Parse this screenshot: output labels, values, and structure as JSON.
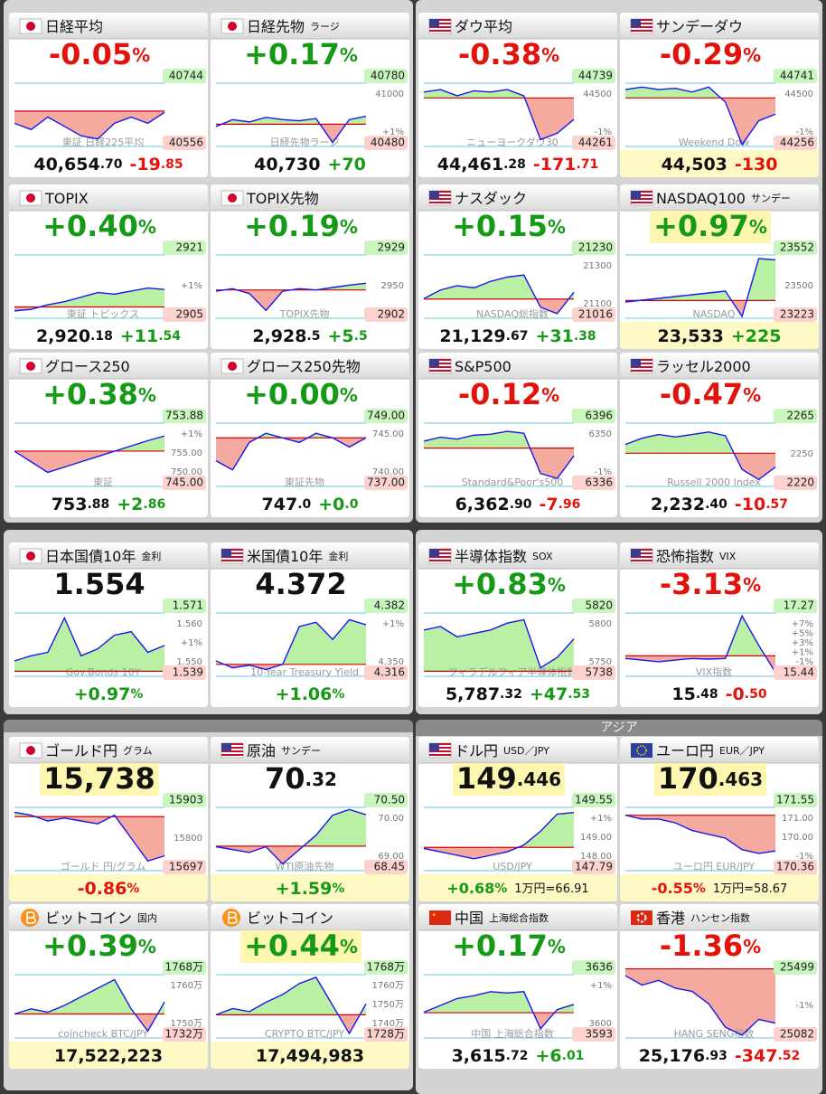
{
  "section_label": "アジア",
  "tiles": [
    {
      "flag": "jp",
      "name": "日経平均",
      "top": "-0.05%",
      "tags": [
        "40744",
        "40556"
      ],
      "gray": [],
      "watermark": "東証 日経225平均",
      "bottom": [
        "40,654.70",
        "-19.85"
      ],
      "ylim": [
        40540,
        40760
      ],
      "prev": 40659,
      "spark": [
        40620,
        40600,
        40640,
        40610,
        40580,
        40570,
        40620,
        40640,
        40620,
        40655
      ]
    },
    {
      "flag": "jp",
      "name": "日経先物",
      "sub": "ラージ",
      "top": "+0.17%",
      "tags": [
        "40780",
        "40480"
      ],
      "gray": [
        "41000",
        "+1%"
      ],
      "watermark": "日経先物ラージ",
      "bottom": [
        "40,730",
        "+70"
      ],
      "ylim": [
        40450,
        41050
      ],
      "prev": 40660,
      "spark": [
        40640,
        40700,
        40680,
        40720,
        40700,
        40690,
        40710,
        40500,
        40700,
        40730
      ]
    },
    {
      "flag": "us",
      "name": "ダウ平均",
      "top": "-0.38%",
      "tags": [
        "44739",
        "44261"
      ],
      "gray": [
        "44500",
        "-1%"
      ],
      "watermark": "ニューヨークダウ30",
      "bottom": [
        "44,461.28",
        "-171.71"
      ],
      "ylim": [
        44230,
        44780
      ],
      "prev": 44633,
      "spark": [
        44680,
        44700,
        44650,
        44690,
        44680,
        44700,
        44650,
        44300,
        44350,
        44461
      ]
    },
    {
      "flag": "us",
      "name": "サンデーダウ",
      "top": "-0.29%",
      "tags": [
        "44741",
        "44256"
      ],
      "gray": [
        "44500",
        "-1%"
      ],
      "watermark": "Weekend Dow",
      "bottom": [
        "44,503",
        "-130"
      ],
      "bottom_hl": true,
      "ylim": [
        44230,
        44780
      ],
      "prev": 44633,
      "spark": [
        44700,
        44720,
        44700,
        44710,
        44680,
        44720,
        44600,
        44260,
        44450,
        44503
      ]
    },
    {
      "flag": "jp",
      "name": "TOPIX",
      "top": "+0.40%",
      "tags": [
        "2921",
        "2905"
      ],
      "gray": [
        "+1%"
      ],
      "watermark": "東証 トピックス",
      "bottom": [
        "2,920.18",
        "+11.54"
      ],
      "ylim": [
        2900,
        2945
      ],
      "prev": 2908.6,
      "spark": [
        2906,
        2907,
        2910,
        2912,
        2915,
        2918,
        2917,
        2919,
        2921,
        2920
      ]
    },
    {
      "flag": "jp",
      "name": "TOPIX先物",
      "top": "+0.19%",
      "tags": [
        "2929",
        "2902"
      ],
      "gray": [
        "2950"
      ],
      "watermark": "TOPIX先物",
      "bottom": [
        "2,928.5",
        "+5.5"
      ],
      "ylim": [
        2898,
        2955
      ],
      "prev": 2923,
      "spark": [
        2922,
        2924,
        2920,
        2906,
        2922,
        2924,
        2923,
        2925,
        2927,
        2928.5
      ]
    },
    {
      "flag": "us",
      "name": "ナスダック",
      "top": "+0.15%",
      "tags": [
        "21230",
        "21016"
      ],
      "gray": [
        "21300",
        "21100"
      ],
      "watermark": "NASDAQ総指数",
      "bottom": [
        "21,129.67",
        "+31.38"
      ],
      "ylim": [
        21000,
        21320
      ],
      "prev": 21098,
      "spark": [
        21100,
        21140,
        21160,
        21150,
        21180,
        21200,
        21210,
        21060,
        21030,
        21129
      ]
    },
    {
      "flag": "us",
      "name": "NASDAQ100",
      "sub": "サンデー",
      "top": "+0.97%",
      "top_hl": true,
      "tags": [
        "23552",
        "23223"
      ],
      "gray": [
        "23500"
      ],
      "watermark": "NASDAQ",
      "bottom": [
        "23,533",
        "+225"
      ],
      "bottom_hl": true,
      "ylim": [
        23200,
        23580
      ],
      "prev": 23308,
      "spark": [
        23300,
        23310,
        23320,
        23330,
        23340,
        23350,
        23360,
        23220,
        23540,
        23533
      ]
    },
    {
      "flag": "jp",
      "name": "グロース250",
      "top": "+0.38%",
      "tags": [
        "753.88",
        "745.00"
      ],
      "gray": [
        "+1%",
        "755.00",
        "750.00"
      ],
      "watermark": "東証",
      "bottom": [
        "753.88",
        "+2.86"
      ],
      "ylim": [
        744,
        757
      ],
      "prev": 751.02,
      "spark": [
        751,
        749,
        747,
        748,
        749,
        750,
        751,
        752,
        753,
        753.88
      ]
    },
    {
      "flag": "jp",
      "name": "グロース250先物",
      "top": "+0.00%",
      "tags": [
        "749.00",
        "737.00"
      ],
      "gray": [
        "745.00",
        "740.00"
      ],
      "watermark": "東証先物",
      "bottom": [
        "747.0",
        "+0.0"
      ],
      "ylim": [
        736,
        751
      ],
      "prev": 747,
      "spark": [
        742,
        740,
        746,
        748,
        747,
        746,
        748,
        747,
        745,
        747
      ]
    },
    {
      "flag": "us",
      "name": "S&P500",
      "top": "-0.12%",
      "tags": [
        "6396",
        "6336"
      ],
      "gray": [
        "6350",
        "-1%"
      ],
      "watermark": "Standard&Poor's500",
      "bottom": [
        "6,362.90",
        "-7.96"
      ],
      "ylim": [
        6330,
        6400
      ],
      "prev": 6370.9,
      "spark": [
        6378,
        6382,
        6380,
        6384,
        6385,
        6388,
        6386,
        6345,
        6340,
        6363
      ]
    },
    {
      "flag": "us",
      "name": "ラッセル2000",
      "top": "-0.47%",
      "tags": [
        "2265",
        "2220"
      ],
      "gray": [
        "2250"
      ],
      "watermark": "Russell 2000 Index",
      "bottom": [
        "2,232.40",
        "-10.57"
      ],
      "ylim": [
        2215,
        2270
      ],
      "prev": 2243,
      "spark": [
        2250,
        2255,
        2258,
        2256,
        2258,
        2260,
        2257,
        2230,
        2222,
        2232
      ]
    },
    {
      "flag": "jp",
      "name": "日本国債10年",
      "sub": "金利",
      "top": "1.554",
      "tags": [
        "1.571",
        "1.539"
      ],
      "gray": [
        "1.560",
        "+1%",
        "1.550"
      ],
      "watermark": "Gov.Bonds 10Y",
      "bottom": [
        "+0.97%"
      ],
      "ylim": [
        1.535,
        1.575
      ],
      "prev": 1.539,
      "spark": [
        1.545,
        1.548,
        1.55,
        1.57,
        1.548,
        1.552,
        1.56,
        1.562,
        1.55,
        1.554
      ]
    },
    {
      "flag": "us",
      "name": "米国債10年",
      "sub": "金利",
      "top": "4.372",
      "tags": [
        "4.382",
        "4.316"
      ],
      "gray": [
        "+1%",
        "4.350"
      ],
      "watermark": "10-Year Treasury Yield",
      "bottom": [
        "+1.06%"
      ],
      "ylim": [
        4.31,
        4.39
      ],
      "prev": 4.326,
      "spark": [
        4.33,
        4.322,
        4.325,
        4.32,
        4.326,
        4.37,
        4.375,
        4.355,
        4.378,
        4.372
      ]
    },
    {
      "flag": "us",
      "name": "半導体指数",
      "sub": "SOX",
      "top": "+0.83%",
      "tags": [
        "5820",
        "5738"
      ],
      "gray": [
        "5800",
        "5750"
      ],
      "watermark": "フィラデルフィア半導体指数",
      "bottom": [
        "5,787.32",
        "+47.53"
      ],
      "ylim": [
        5730,
        5830
      ],
      "prev": 5740,
      "spark": [
        5800,
        5805,
        5790,
        5795,
        5800,
        5810,
        5815,
        5745,
        5760,
        5787
      ]
    },
    {
      "flag": "us",
      "name": "恐怖指数",
      "sub": "VIX",
      "top": "-3.13%",
      "tags": [
        "17.27",
        "15.44"
      ],
      "gray": [
        "+7%",
        "+5%",
        "+3%",
        "+1%",
        "-1%"
      ],
      "watermark": "VIX指数",
      "bottom": [
        "15.48",
        "-0.50"
      ],
      "ylim": [
        15.3,
        17.4
      ],
      "prev": 15.98,
      "spark": [
        15.9,
        15.85,
        15.8,
        15.85,
        15.9,
        15.88,
        15.9,
        17.2,
        16.3,
        15.48
      ]
    },
    {
      "flag": "jp",
      "name": "ゴールド円",
      "sub": "グラム",
      "top": "15,738",
      "top_hl": true,
      "tags": [
        "15903",
        "15697"
      ],
      "gray": [
        "15800"
      ],
      "watermark": "ゴールド 円/グラム",
      "bottom": [
        "-0.86%"
      ],
      "bottom_hl": true,
      "ylim": [
        15680,
        15920
      ],
      "prev": 15875,
      "spark": [
        15890,
        15880,
        15860,
        15870,
        15860,
        15850,
        15880,
        15800,
        15720,
        15738
      ]
    },
    {
      "flag": "us",
      "name": "原油",
      "sub": "サンデー",
      "top": "70.32",
      "tags": [
        "70.50",
        "68.45"
      ],
      "gray": [
        "70.00",
        "69.00"
      ],
      "watermark": "WTI原油先物",
      "bottom": [
        "+1.59%"
      ],
      "bottom_hl": true,
      "ylim": [
        68.3,
        70.7
      ],
      "prev": 69.22,
      "spark": [
        69.2,
        69.1,
        69.0,
        69.2,
        68.6,
        69.1,
        69.6,
        70.3,
        70.5,
        70.32
      ]
    },
    {
      "flag": "us",
      "name": "ドル円",
      "sub": "USD／JPY",
      "top": "149.446",
      "top_hl": true,
      "tags": [
        "149.55",
        "147.79"
      ],
      "gray": [
        "+1%",
        "149.00",
        "148.00"
      ],
      "watermark": "USD/JPY",
      "bottom": [
        "+0.68%",
        "1万円=66.91"
      ],
      "bottom_hl": true,
      "ylim": [
        147.7,
        149.7
      ],
      "prev": 148.43,
      "spark": [
        148.4,
        148.3,
        148.2,
        148.1,
        148.2,
        148.3,
        148.5,
        148.9,
        149.4,
        149.446
      ]
    },
    {
      "flag": "eu",
      "name": "ユーロ円",
      "sub": "EUR／JPY",
      "top": "170.463",
      "top_hl": true,
      "tags": [
        "171.55",
        "170.36"
      ],
      "gray": [
        "171.00",
        "170.00",
        "-1%"
      ],
      "watermark": "ユーロ円 EUR/JPY",
      "bottom": [
        "-0.55%",
        "1万円=58.67"
      ],
      "bottom_hl": true,
      "ylim": [
        169.9,
        171.7
      ],
      "prev": 171.4,
      "spark": [
        171.4,
        171.3,
        171.3,
        171.2,
        171.0,
        170.9,
        170.8,
        170.5,
        170.4,
        170.463
      ]
    },
    {
      "flag": "btc",
      "name": "ビットコイン",
      "sub": "国内",
      "top": "+0.39%",
      "tags": [
        "1768万",
        "1732万"
      ],
      "gray": [
        "1760万",
        "1750万"
      ],
      "watermark": "coincheck BTC/JPY",
      "bottom": [
        "17,522,223"
      ],
      "bottom_hl": true,
      "ylim": [
        1730,
        1770
      ],
      "prev": 1745,
      "spark": [
        1745,
        1748,
        1746,
        1750,
        1755,
        1760,
        1765,
        1748,
        1735,
        1752
      ]
    },
    {
      "flag": "btc",
      "name": "ビットコイン",
      "top": "+0.44%",
      "top_hl": true,
      "tags": [
        "1768万",
        "1728万"
      ],
      "gray": [
        "1760万",
        "1750万",
        "1740万"
      ],
      "watermark": "CRYPTO BTC/JPY",
      "bottom": [
        "17,494,983"
      ],
      "bottom_hl": true,
      "ylim": [
        1726,
        1770
      ],
      "prev": 1742,
      "spark": [
        1742,
        1746,
        1744,
        1750,
        1755,
        1762,
        1766,
        1748,
        1730,
        1749
      ]
    },
    {
      "flag": "cn",
      "name": "中国",
      "sub": "上海総合指数",
      "top": "+0.17%",
      "tags": [
        "3636",
        "3593"
      ],
      "gray": [
        "+1%",
        "3600"
      ],
      "watermark": "中国 上海総合指数",
      "bottom": [
        "3,615.72",
        "+6.01"
      ],
      "ylim": [
        3590,
        3640
      ],
      "prev": 3609.7,
      "spark": [
        3610,
        3615,
        3620,
        3622,
        3625,
        3624,
        3625,
        3598,
        3612,
        3615.7
      ]
    },
    {
      "flag": "hk",
      "name": "香港",
      "sub": "ハンセン指数",
      "top": "-1.36%",
      "tags": [
        "25499",
        "25082"
      ],
      "gray": [
        "-1%"
      ],
      "watermark": "HANG SENG指数",
      "bottom": [
        "25,176.93",
        "-347.52"
      ],
      "ylim": [
        25070,
        25510
      ],
      "prev": 25524,
      "spark": [
        25480,
        25420,
        25450,
        25400,
        25380,
        25300,
        25150,
        25100,
        25200,
        25177
      ]
    }
  ]
}
